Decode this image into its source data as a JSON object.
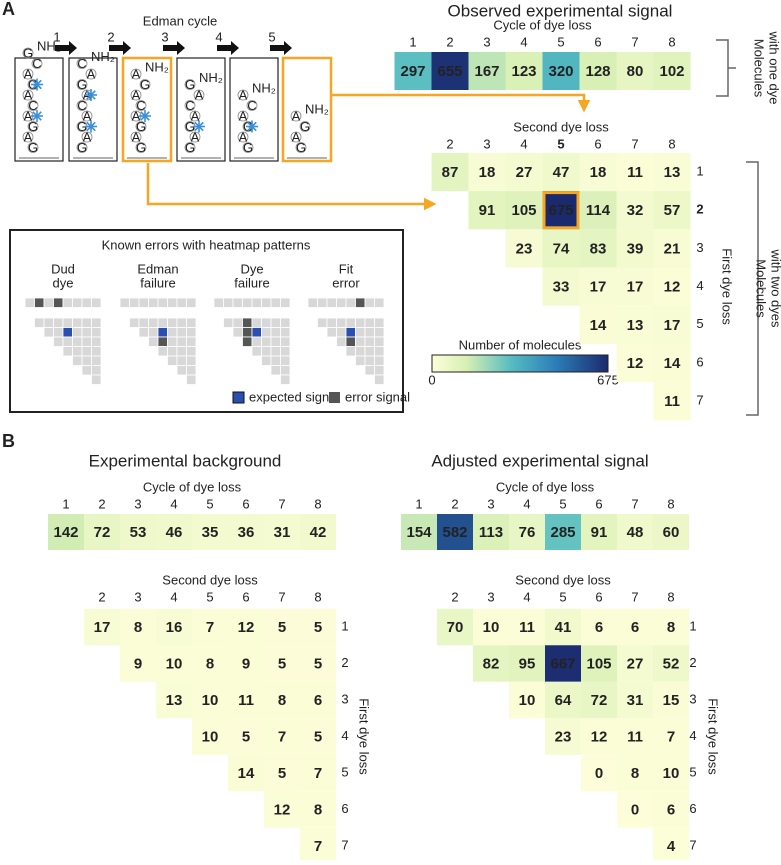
{
  "panel_a": {
    "label": "A",
    "edman_title": "Edman cycle",
    "cycle_numbers": [
      "1",
      "2",
      "3",
      "4",
      "5"
    ],
    "molecules": [
      {
        "residues": [
          "G",
          "C",
          "A",
          "G",
          "A",
          "C",
          "A",
          "G",
          "A",
          "G"
        ],
        "amine": "NH₂"
      },
      {
        "residues": [
          "C",
          "A",
          "G",
          "A",
          "C",
          "A",
          "G",
          "A",
          "G"
        ],
        "amine": "NH₂"
      },
      {
        "residues": [
          "A",
          "G",
          "A",
          "C",
          "A",
          "G",
          "A",
          "G"
        ],
        "amine": "NH₂"
      },
      {
        "residues": [
          "G",
          "A",
          "C",
          "A",
          "G",
          "A",
          "G"
        ],
        "amine": "NH₂"
      },
      {
        "residues": [
          "A",
          "C",
          "A",
          "G",
          "A",
          "G"
        ],
        "amine": "NH₂"
      },
      {
        "residues": [
          "A",
          "G",
          "A",
          "G"
        ],
        "amine": "NH₂"
      }
    ],
    "title": "Observed experimental signal",
    "one_dye": {
      "axis_title": "Cycle of dye loss",
      "columns": [
        "1",
        "2",
        "3",
        "4",
        "5",
        "6",
        "7",
        "8"
      ],
      "values": [
        297,
        655,
        167,
        123,
        320,
        128,
        80,
        102
      ],
      "side_label": [
        "Molecules",
        "with one dye"
      ]
    },
    "two_dye": {
      "x_title": "Second dye loss",
      "columns": [
        "2",
        "3",
        "4",
        "5",
        "6",
        "7",
        "8"
      ],
      "y_title": "First dye loss",
      "rows": [
        "1",
        "2",
        "3",
        "4",
        "5",
        "6",
        "7"
      ],
      "values": [
        [
          87,
          18,
          27,
          47,
          18,
          11,
          13
        ],
        [
          91,
          105,
          675,
          114,
          32,
          57
        ],
        [
          23,
          74,
          83,
          39,
          21
        ],
        [
          33,
          17,
          17,
          12
        ],
        [
          14,
          13,
          17
        ],
        [
          12,
          14
        ],
        [
          11
        ]
      ],
      "side_label": [
        "Molecules",
        "with two dyes"
      ]
    },
    "colorbar": {
      "title": "Number of molecules",
      "min": 0,
      "max": 675
    },
    "errors": {
      "title": "Known errors with heatmap patterns",
      "kinds": [
        [
          "Dud",
          "dye"
        ],
        [
          "Edman",
          "failure"
        ],
        [
          "Dye",
          "failure"
        ],
        [
          "Fit",
          "error"
        ]
      ],
      "legend": [
        "expected signal",
        "error signal"
      ]
    }
  },
  "panel_b": {
    "label": "B",
    "background": {
      "title": "Experimental background",
      "one_dye": {
        "axis_title": "Cycle of dye loss",
        "columns": [
          "1",
          "2",
          "3",
          "4",
          "5",
          "6",
          "7",
          "8"
        ],
        "values": [
          142,
          72,
          53,
          46,
          35,
          36,
          31,
          42
        ]
      },
      "two_dye": {
        "x_title": "Second dye loss",
        "columns": [
          "2",
          "3",
          "4",
          "5",
          "6",
          "7",
          "8"
        ],
        "y_title": "First dye loss",
        "rows": [
          "1",
          "2",
          "3",
          "4",
          "5",
          "6",
          "7"
        ],
        "values": [
          [
            17,
            8,
            16,
            7,
            12,
            5,
            5
          ],
          [
            9,
            10,
            8,
            9,
            5,
            5
          ],
          [
            13,
            10,
            11,
            8,
            6
          ],
          [
            10,
            5,
            7,
            5
          ],
          [
            14,
            5,
            7
          ],
          [
            12,
            8
          ],
          [
            7
          ]
        ]
      }
    },
    "adjusted": {
      "title": "Adjusted experimental signal",
      "one_dye": {
        "axis_title": "Cycle of dye loss",
        "columns": [
          "1",
          "2",
          "3",
          "4",
          "5",
          "6",
          "7",
          "8"
        ],
        "values": [
          154,
          582,
          113,
          76,
          285,
          91,
          48,
          60
        ]
      },
      "two_dye": {
        "x_title": "Second dye loss",
        "columns": [
          "2",
          "3",
          "4",
          "5",
          "6",
          "7",
          "8"
        ],
        "y_title": "First dye loss",
        "rows": [
          "1",
          "2",
          "3",
          "4",
          "5",
          "6",
          "7"
        ],
        "values": [
          [
            70,
            10,
            11,
            41,
            6,
            6,
            8
          ],
          [
            82,
            95,
            667,
            105,
            27,
            52
          ],
          [
            10,
            64,
            72,
            31,
            15
          ],
          [
            23,
            12,
            11,
            7
          ],
          [
            0,
            8,
            10
          ],
          [
            0,
            6
          ],
          [
            4
          ]
        ]
      }
    }
  }
}
